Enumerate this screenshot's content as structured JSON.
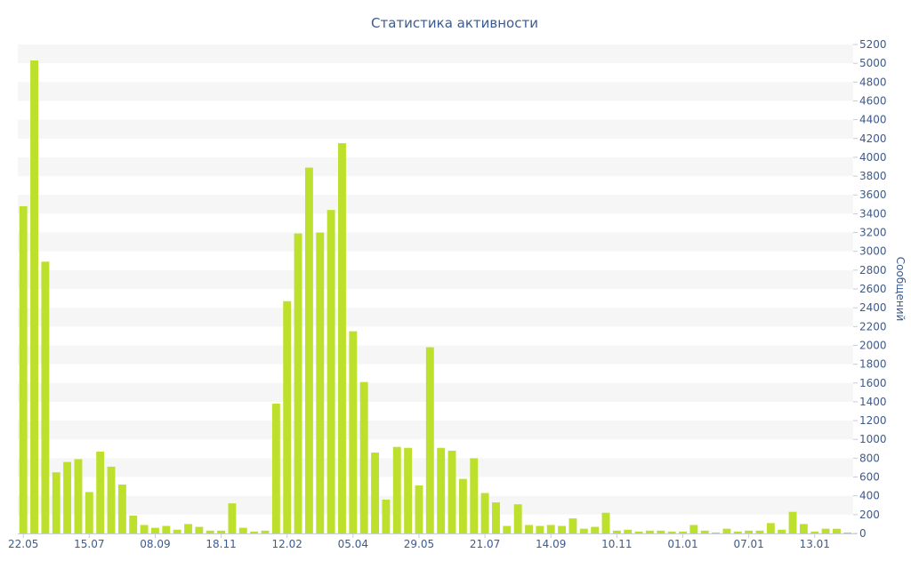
{
  "colors": {
    "bar": "#bde02d",
    "band": "#f6f6f6",
    "axis_text": "#3d5b8c",
    "axis_line": "#c5ccd8"
  },
  "chart_data": {
    "type": "bar",
    "title": "Статистика активности",
    "xlabel": "",
    "ylabel": "Сообщений",
    "y_axis_side": "right",
    "ylim": [
      0,
      5200
    ],
    "ytick_step": 200,
    "grid": "alternating horizontal bands",
    "xtick_labels": [
      {
        "label": "22.05",
        "index": 0
      },
      {
        "label": "15.07",
        "index": 6
      },
      {
        "label": "08.09",
        "index": 12
      },
      {
        "label": "18.11",
        "index": 18
      },
      {
        "label": "12.02",
        "index": 24
      },
      {
        "label": "05.04",
        "index": 30
      },
      {
        "label": "29.05",
        "index": 36
      },
      {
        "label": "21.07",
        "index": 42
      },
      {
        "label": "14.09",
        "index": 48
      },
      {
        "label": "10.11",
        "index": 54
      },
      {
        "label": "01.01",
        "index": 60
      },
      {
        "label": "07.01",
        "index": 66
      },
      {
        "label": "13.01",
        "index": 72
      }
    ],
    "values": [
      3480,
      5030,
      2890,
      650,
      760,
      790,
      440,
      870,
      710,
      520,
      190,
      90,
      60,
      80,
      40,
      100,
      70,
      30,
      30,
      320,
      60,
      20,
      30,
      1380,
      2470,
      3190,
      3890,
      3200,
      3440,
      4150,
      2150,
      1610,
      860,
      360,
      920,
      910,
      510,
      1980,
      910,
      880,
      580,
      800,
      430,
      330,
      80,
      310,
      90,
      80,
      90,
      80,
      160,
      50,
      70,
      220,
      30,
      40,
      20,
      30,
      30,
      20,
      20,
      90,
      30,
      10,
      50,
      20,
      30,
      30,
      110,
      40,
      230,
      100,
      20,
      50,
      50,
      10
    ]
  }
}
